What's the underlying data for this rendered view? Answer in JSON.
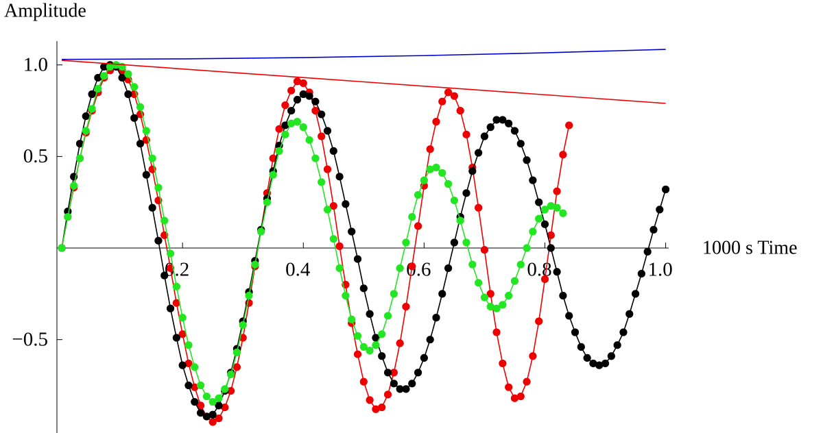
{
  "chart_data": {
    "type": "line",
    "y_label": "Amplitude",
    "x_label": "1000 s Time",
    "xlim": [
      -0.008,
      1.005
    ],
    "ylim": [
      -1.01,
      1.13
    ],
    "xticks": [
      0.2,
      0.4,
      0.6,
      0.8,
      {
        "value": 1,
        "label": "1.0"
      }
    ],
    "yticks": [
      {
        "value": -0.5,
        "label": "−0.5"
      },
      0.5,
      {
        "value": 1,
        "label": "1.0"
      }
    ],
    "grid": false,
    "series": [
      {
        "color": "#ee0000",
        "markers": true,
        "x": [
          0,
          0.01,
          0.02,
          0.03,
          0.04,
          0.05,
          0.06,
          0.07,
          0.08,
          0.09,
          0.1,
          0.11,
          0.12,
          0.13,
          0.14,
          0.15,
          0.16,
          0.17,
          0.18,
          0.19,
          0.2,
          0.21,
          0.22,
          0.23,
          0.24,
          0.25,
          0.26,
          0.27,
          0.28,
          0.29,
          0.3,
          0.31,
          0.32,
          0.33,
          0.34,
          0.35,
          0.36,
          0.37,
          0.38,
          0.39,
          0.4,
          0.41,
          0.42,
          0.43,
          0.44,
          0.45,
          0.46,
          0.47,
          0.48,
          0.49,
          0.5,
          0.51,
          0.52,
          0.53,
          0.54,
          0.55,
          0.56,
          0.57,
          0.58,
          0.59,
          0.6,
          0.61,
          0.62,
          0.63,
          0.64,
          0.65,
          0.66,
          0.67,
          0.68,
          0.69,
          0.7,
          0.71,
          0.72,
          0.73,
          0.74,
          0.75,
          0.76,
          0.77,
          0.78,
          0.79,
          0.8,
          0.81,
          0.82,
          0.83,
          0.84
        ],
        "values": [
          0,
          0.17,
          0.33,
          0.49,
          0.63,
          0.75,
          0.85,
          0.93,
          0.97,
          0.99,
          0.97,
          0.92,
          0.84,
          0.73,
          0.59,
          0.43,
          0.26,
          0.07,
          -0.11,
          -0.3,
          -0.47,
          -0.63,
          -0.76,
          -0.86,
          -0.92,
          -0.95,
          -0.93,
          -0.87,
          -0.78,
          -0.65,
          -0.49,
          -0.3,
          -0.1,
          0.1,
          0.3,
          0.49,
          0.65,
          0.78,
          0.86,
          0.91,
          0.9,
          0.85,
          0.75,
          0.61,
          0.43,
          0.23,
          0.01,
          -0.2,
          -0.41,
          -0.58,
          -0.73,
          -0.83,
          -0.88,
          -0.87,
          -0.8,
          -0.68,
          -0.52,
          -0.32,
          -0.1,
          0.12,
          0.34,
          0.54,
          0.69,
          0.8,
          0.85,
          0.83,
          0.75,
          0.62,
          0.44,
          0.22,
          -0.01,
          -0.25,
          -0.46,
          -0.63,
          -0.76,
          -0.82,
          -0.81,
          -0.73,
          -0.59,
          -0.4,
          -0.17,
          0.07,
          0.31,
          0.51,
          0.67
        ]
      },
      {
        "color": "#000000",
        "markers": true,
        "x": [
          0,
          0.01,
          0.02,
          0.03,
          0.04,
          0.05,
          0.06,
          0.07,
          0.08,
          0.09,
          0.1,
          0.11,
          0.12,
          0.13,
          0.14,
          0.15,
          0.16,
          0.17,
          0.18,
          0.19,
          0.2,
          0.21,
          0.22,
          0.23,
          0.24,
          0.25,
          0.26,
          0.27,
          0.28,
          0.29,
          0.3,
          0.31,
          0.32,
          0.33,
          0.34,
          0.35,
          0.36,
          0.37,
          0.38,
          0.39,
          0.4,
          0.41,
          0.42,
          0.43,
          0.44,
          0.45,
          0.46,
          0.47,
          0.48,
          0.49,
          0.5,
          0.51,
          0.52,
          0.53,
          0.54,
          0.55,
          0.56,
          0.57,
          0.58,
          0.59,
          0.6,
          0.61,
          0.62,
          0.63,
          0.64,
          0.65,
          0.66,
          0.67,
          0.68,
          0.69,
          0.7,
          0.71,
          0.72,
          0.73,
          0.74,
          0.75,
          0.76,
          0.77,
          0.78,
          0.79,
          0.8,
          0.81,
          0.82,
          0.83,
          0.84,
          0.85,
          0.86,
          0.87,
          0.88,
          0.89,
          0.9,
          0.91,
          0.92,
          0.93,
          0.94,
          0.95,
          0.96,
          0.97,
          0.98,
          0.99,
          1
        ],
        "values": [
          0,
          0.2,
          0.39,
          0.57,
          0.72,
          0.84,
          0.93,
          0.99,
          1,
          0.99,
          0.93,
          0.84,
          0.71,
          0.57,
          0.4,
          0.22,
          0.04,
          -0.15,
          -0.33,
          -0.49,
          -0.64,
          -0.75,
          -0.84,
          -0.9,
          -0.92,
          -0.91,
          -0.86,
          -0.78,
          -0.68,
          -0.55,
          -0.4,
          -0.24,
          -0.07,
          0.1,
          0.27,
          0.42,
          0.56,
          0.67,
          0.75,
          0.81,
          0.84,
          0.83,
          0.8,
          0.73,
          0.64,
          0.53,
          0.39,
          0.24,
          0.09,
          -0.06,
          -0.22,
          -0.36,
          -0.49,
          -0.59,
          -0.68,
          -0.74,
          -0.77,
          -0.77,
          -0.74,
          -0.68,
          -0.6,
          -0.5,
          -0.38,
          -0.25,
          -0.11,
          0.03,
          0.17,
          0.3,
          0.42,
          0.52,
          0.61,
          0.66,
          0.7,
          0.7,
          0.68,
          0.64,
          0.57,
          0.48,
          0.37,
          0.25,
          0.13,
          0,
          -0.13,
          -0.26,
          -0.37,
          -0.46,
          -0.54,
          -0.6,
          -0.63,
          -0.64,
          -0.63,
          -0.59,
          -0.53,
          -0.46,
          -0.36,
          -0.25,
          -0.14,
          -0.02,
          0.1,
          0.21,
          0.32
        ]
      },
      {
        "color": "#22e622",
        "markers": true,
        "x": [
          0,
          0.01,
          0.02,
          0.03,
          0.04,
          0.05,
          0.06,
          0.07,
          0.08,
          0.09,
          0.1,
          0.11,
          0.12,
          0.13,
          0.14,
          0.15,
          0.16,
          0.17,
          0.18,
          0.19,
          0.2,
          0.21,
          0.22,
          0.23,
          0.24,
          0.25,
          0.26,
          0.27,
          0.28,
          0.29,
          0.3,
          0.31,
          0.32,
          0.33,
          0.34,
          0.35,
          0.36,
          0.37,
          0.38,
          0.39,
          0.4,
          0.41,
          0.42,
          0.43,
          0.44,
          0.45,
          0.46,
          0.47,
          0.48,
          0.49,
          0.5,
          0.51,
          0.52,
          0.53,
          0.54,
          0.55,
          0.56,
          0.57,
          0.58,
          0.59,
          0.6,
          0.61,
          0.62,
          0.63,
          0.64,
          0.65,
          0.66,
          0.67,
          0.68,
          0.69,
          0.7,
          0.71,
          0.72,
          0.73,
          0.74,
          0.75,
          0.76,
          0.77,
          0.78,
          0.79,
          0.8,
          0.81,
          0.82,
          0.83
        ],
        "values": [
          0,
          0.17,
          0.34,
          0.49,
          0.64,
          0.76,
          0.87,
          0.94,
          0.99,
          1,
          0.99,
          0.95,
          0.88,
          0.77,
          0.64,
          0.49,
          0.33,
          0.15,
          -0.03,
          -0.21,
          -0.38,
          -0.53,
          -0.65,
          -0.75,
          -0.81,
          -0.84,
          -0.82,
          -0.77,
          -0.69,
          -0.57,
          -0.42,
          -0.26,
          -0.09,
          0.09,
          0.25,
          0.4,
          0.53,
          0.62,
          0.68,
          0.69,
          0.66,
          0.59,
          0.49,
          0.36,
          0.21,
          0.05,
          -0.11,
          -0.26,
          -0.39,
          -0.48,
          -0.54,
          -0.56,
          -0.53,
          -0.47,
          -0.37,
          -0.25,
          -0.11,
          0.03,
          0.17,
          0.29,
          0.37,
          0.43,
          0.44,
          0.41,
          0.35,
          0.26,
          0.15,
          0.03,
          -0.09,
          -0.19,
          -0.27,
          -0.32,
          -0.33,
          -0.31,
          -0.26,
          -0.18,
          -0.09,
          0,
          0.09,
          0.16,
          0.21,
          0.23,
          0.22,
          0.19
        ]
      },
      {
        "color": "#0000cc",
        "markers": false,
        "x": [
          0,
          0.2,
          0.4,
          0.6,
          0.8,
          1
        ],
        "values": [
          1.03,
          1.033,
          1.04,
          1.051,
          1.066,
          1.085
        ]
      },
      {
        "color": "#ee0000",
        "markers": false,
        "x": [
          0,
          1
        ],
        "values": [
          1.025,
          0.79
        ]
      }
    ]
  }
}
